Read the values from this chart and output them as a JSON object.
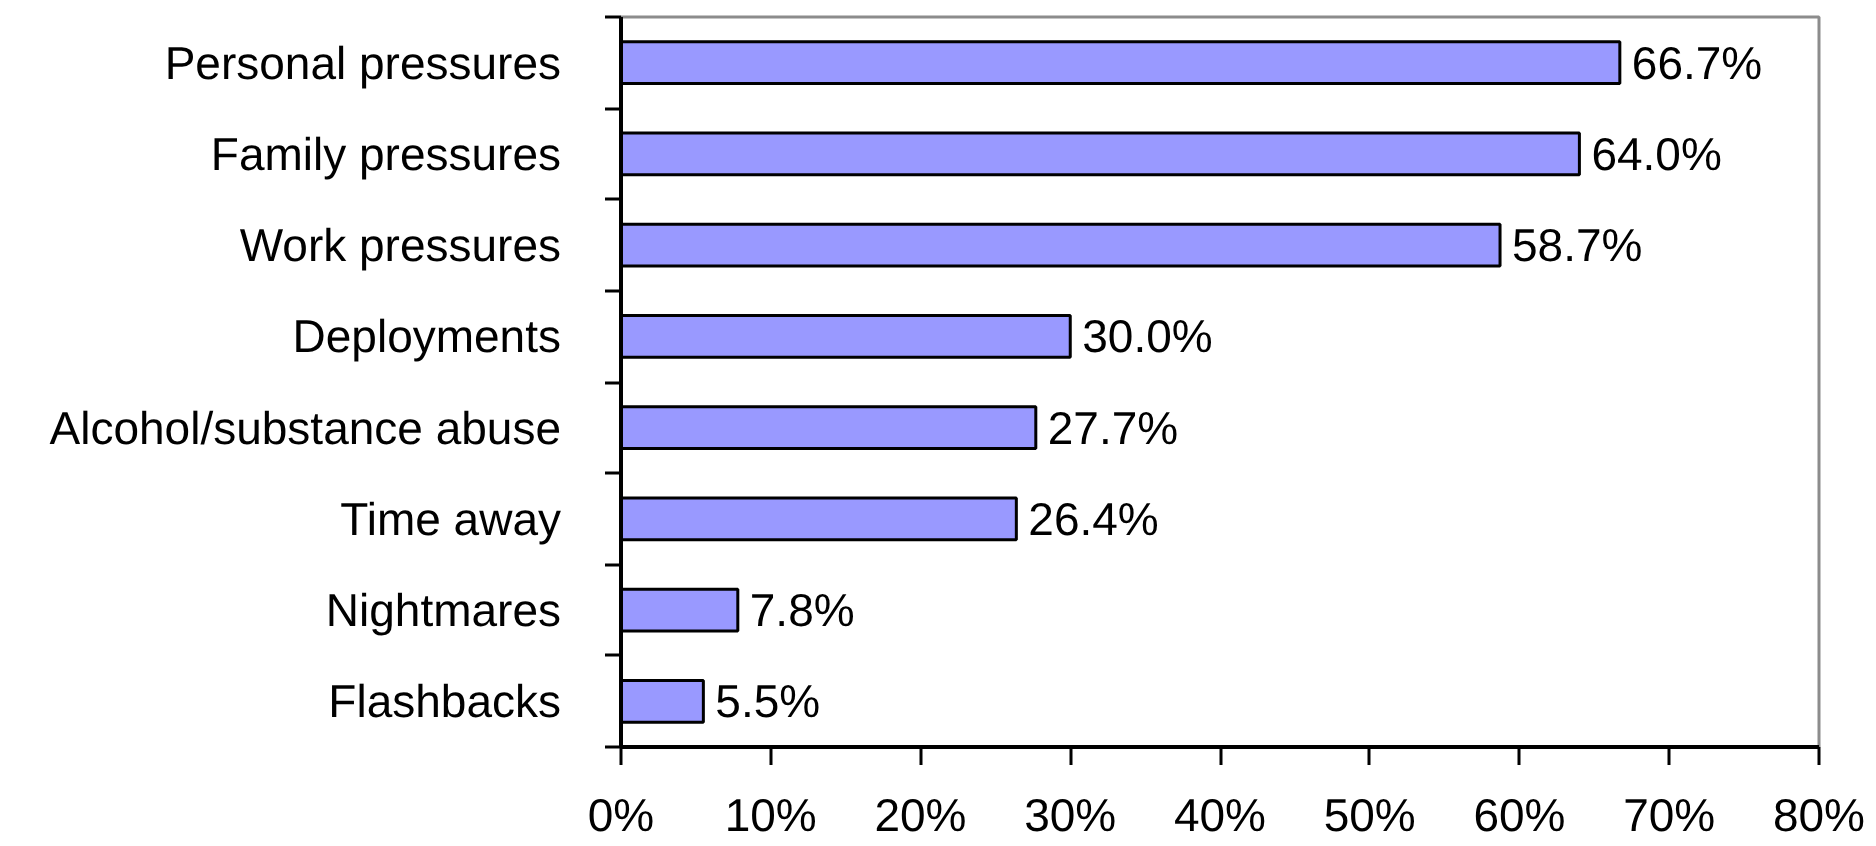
{
  "chart_data": {
    "type": "bar",
    "orientation": "horizontal",
    "categories": [
      "Personal pressures",
      "Family pressures",
      "Work pressures",
      "Deployments",
      "Alcohol/substance abuse",
      "Time away",
      "Nightmares",
      "Flashbacks"
    ],
    "values": [
      66.7,
      64.0,
      58.7,
      30.0,
      27.7,
      26.4,
      7.8,
      5.5
    ],
    "value_labels": [
      "66.7%",
      "64.0%",
      "58.7%",
      "30.0%",
      "27.7%",
      "26.4%",
      "7.8%",
      "5.5%"
    ],
    "color": "#9999ff",
    "xlim": [
      0,
      80
    ],
    "xticks": [
      {
        "value": 0,
        "label": "0%"
      },
      {
        "value": 10,
        "label": "10%"
      },
      {
        "value": 20,
        "label": "20%"
      },
      {
        "value": 30,
        "label": "30%"
      },
      {
        "value": 40,
        "label": "40%"
      },
      {
        "value": 50,
        "label": "50%"
      },
      {
        "value": 60,
        "label": "60%"
      },
      {
        "value": 70,
        "label": "70%"
      },
      {
        "value": 80,
        "label": "80%"
      }
    ]
  }
}
